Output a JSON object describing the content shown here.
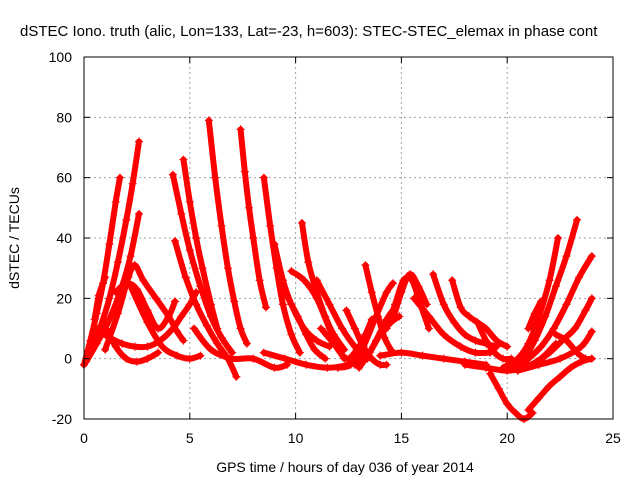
{
  "chart_data": {
    "type": "scatter",
    "title": "dSTEC Iono. truth (alic, Lon=133, Lat=-23, h=603): STEC-STEC_elemax in phase cont",
    "xlabel": "GPS time / hours of day 036 of year 2014",
    "ylabel": "dSTEC  / TECUs",
    "xlim": [
      0,
      25
    ],
    "ylim": [
      -20,
      100
    ],
    "x_ticks": [
      "0",
      "5",
      "10",
      "15",
      "20",
      "25"
    ],
    "y_ticks": [
      "-20",
      "0",
      "20",
      "40",
      "60",
      "80",
      "100"
    ],
    "grid": true,
    "marker": "+",
    "color": "#ff0000",
    "series": [
      {
        "x": [
          0.0,
          0.3,
          0.6,
          0.9,
          1.2,
          1.5,
          1.7
        ],
        "y": [
          -2,
          6,
          15,
          25,
          38,
          52,
          60
        ]
      },
      {
        "x": [
          0.0,
          0.4,
          0.8,
          1.2,
          1.6,
          2.0,
          2.3,
          2.6
        ],
        "y": [
          -2,
          4,
          11,
          20,
          32,
          46,
          58,
          72
        ]
      },
      {
        "x": [
          0.5,
          0.7,
          0.9,
          1.0
        ],
        "y": [
          13,
          21,
          25,
          27
        ]
      },
      {
        "x": [
          0.1,
          0.6,
          1.2,
          1.8,
          2.2,
          2.6
        ],
        "y": [
          -1,
          5,
          13,
          24,
          34,
          48
        ]
      },
      {
        "x": [
          0.9,
          1.5,
          2.0,
          2.5,
          3.0,
          3.5
        ],
        "y": [
          12,
          4,
          0,
          -1,
          0,
          2
        ]
      },
      {
        "x": [
          1.0,
          1.6,
          2.1,
          2.4,
          2.8,
          3.4,
          4.0,
          4.4,
          4.7
        ],
        "y": [
          3,
          15,
          27,
          31,
          26,
          20,
          14,
          9,
          6
        ]
      },
      {
        "x": [
          0.5,
          1.2,
          1.8,
          2.4,
          3.0,
          3.6,
          4.2,
          4.6,
          5.0,
          5.3
        ],
        "y": [
          10,
          7,
          5,
          4,
          4,
          6,
          10,
          14,
          18,
          22
        ]
      },
      {
        "x": [
          1.5,
          2.0,
          2.5,
          3.0,
          3.5,
          4.0,
          4.3
        ],
        "y": [
          22,
          25,
          23,
          16,
          10,
          14,
          19
        ]
      },
      {
        "x": [
          2.2,
          3.0,
          3.7,
          4.4,
          5.0,
          5.5
        ],
        "y": [
          24,
          12,
          4,
          1,
          0,
          1
        ]
      },
      {
        "x": [
          4.2,
          4.6,
          5.0,
          5.5,
          6.0,
          6.5,
          7.0
        ],
        "y": [
          61,
          48,
          36,
          24,
          14,
          7,
          2
        ]
      },
      {
        "x": [
          4.7,
          5.0,
          5.3,
          5.6,
          6.0,
          6.3
        ],
        "y": [
          66,
          52,
          40,
          30,
          18,
          10
        ]
      },
      {
        "x": [
          4.3,
          4.8,
          5.3,
          5.8,
          6.3,
          6.8,
          7.2
        ],
        "y": [
          39,
          27,
          18,
          11,
          5,
          0,
          -6
        ]
      },
      {
        "x": [
          5.9,
          6.2,
          6.5,
          6.8,
          7.1,
          7.4,
          7.7
        ],
        "y": [
          79,
          60,
          44,
          30,
          19,
          10,
          5
        ]
      },
      {
        "x": [
          7.4,
          7.6,
          7.8,
          8.0,
          8.3,
          8.6
        ],
        "y": [
          76,
          62,
          50,
          40,
          26,
          17
        ]
      },
      {
        "x": [
          5.2,
          6.0,
          7.0,
          8.0,
          9.0,
          9.6
        ],
        "y": [
          10,
          3,
          0,
          0,
          -3,
          -2
        ]
      },
      {
        "x": [
          8.5,
          8.8,
          9.1,
          9.4,
          9.8,
          10.2
        ],
        "y": [
          60,
          44,
          30,
          18,
          8,
          2
        ]
      },
      {
        "x": [
          9.0,
          9.4,
          9.8,
          10.4,
          11.0,
          11.6
        ],
        "y": [
          38,
          26,
          18,
          10,
          6,
          4
        ]
      },
      {
        "x": [
          9.5,
          9.8,
          10.1,
          10.5,
          10.9,
          11.4
        ],
        "y": [
          22,
          18,
          14,
          8,
          3,
          0
        ]
      },
      {
        "x": [
          10.3,
          10.6,
          11.0,
          11.4,
          11.8,
          12.3
        ],
        "y": [
          45,
          32,
          22,
          14,
          8,
          3
        ]
      },
      {
        "x": [
          9.8,
          10.4,
          11.0,
          11.6,
          12.0,
          12.3
        ],
        "y": [
          29,
          26,
          20,
          10,
          4,
          0
        ]
      },
      {
        "x": [
          8.5,
          9.5,
          10.5,
          11.5,
          12.5,
          13.0
        ],
        "y": [
          2,
          0,
          -2,
          -3,
          -2,
          0
        ]
      },
      {
        "x": [
          11.0,
          11.6,
          12.2,
          12.8,
          13.4
        ],
        "y": [
          26,
          18,
          10,
          4,
          0
        ]
      },
      {
        "x": [
          11.2,
          11.8,
          12.4,
          12.9,
          13.3,
          13.6
        ],
        "y": [
          10,
          5,
          0,
          3,
          8,
          13
        ]
      },
      {
        "x": [
          12.4,
          12.8,
          13.2,
          13.6,
          14.0,
          14.3
        ],
        "y": [
          16,
          10,
          4,
          0,
          -2,
          -2
        ]
      },
      {
        "x": [
          13.3,
          13.6,
          13.9,
          14.2,
          14.5
        ],
        "y": [
          31,
          22,
          14,
          7,
          3
        ]
      },
      {
        "x": [
          12.0,
          12.6,
          13.2,
          13.8,
          14.3,
          14.6
        ],
        "y": [
          -3,
          -2,
          4,
          14,
          22,
          25
        ]
      },
      {
        "x": [
          12.8,
          13.3,
          13.8,
          14.3,
          14.7
        ],
        "y": [
          -2,
          0,
          6,
          13,
          17
        ]
      },
      {
        "x": [
          13.0,
          13.5,
          14.0,
          14.5,
          14.9
        ],
        "y": [
          -3,
          2,
          8,
          12,
          14
        ]
      },
      {
        "x": [
          14.3,
          14.7,
          15.1,
          15.5,
          15.9,
          16.3
        ],
        "y": [
          10,
          18,
          26,
          26,
          18,
          10
        ]
      },
      {
        "x": [
          14.6,
          15.0,
          15.4,
          15.8,
          16.2
        ],
        "y": [
          13,
          22,
          28,
          24,
          18
        ]
      },
      {
        "x": [
          14.0,
          15.0,
          16.0,
          17.0,
          18.0,
          19.0
        ],
        "y": [
          1,
          2,
          1,
          0,
          -1,
          -2
        ]
      },
      {
        "x": [
          16.5,
          17.0,
          17.5,
          18.0,
          18.5,
          19.0,
          19.5
        ],
        "y": [
          28,
          18,
          12,
          8,
          6,
          5,
          4
        ]
      },
      {
        "x": [
          17.4,
          17.8,
          18.2,
          18.6,
          19.0,
          19.5,
          20.0
        ],
        "y": [
          26,
          17,
          14,
          12,
          10,
          6,
          4
        ]
      },
      {
        "x": [
          15.6,
          16.3,
          17.0,
          17.8,
          18.5,
          19.2
        ],
        "y": [
          20,
          14,
          8,
          4,
          2,
          2
        ]
      },
      {
        "x": [
          18.6,
          19.0,
          19.4,
          19.8,
          20.2
        ],
        "y": [
          12,
          6,
          2,
          0,
          0
        ]
      },
      {
        "x": [
          19.2,
          19.6,
          20.0,
          20.4,
          20.8,
          21.2
        ],
        "y": [
          -5,
          -10,
          -15,
          -18,
          -20,
          -18
        ]
      },
      {
        "x": [
          21.0,
          21.5,
          22.0,
          22.5,
          23.0,
          23.5,
          24.0
        ],
        "y": [
          -17,
          -13,
          -9,
          -6,
          -3,
          -1,
          0
        ]
      },
      {
        "x": [
          18.0,
          19.0,
          20.0,
          20.8,
          21.6,
          22.3
        ],
        "y": [
          -2,
          -3,
          -4,
          -3,
          0,
          5
        ]
      },
      {
        "x": [
          19.8,
          20.4,
          21.0,
          21.6,
          22.2,
          22.8,
          23.4,
          24.0
        ],
        "y": [
          -3,
          -3,
          0,
          4,
          10,
          18,
          27,
          34
        ]
      },
      {
        "x": [
          20.3,
          20.8,
          21.3,
          21.8,
          22.3,
          22.8,
          23.3
        ],
        "y": [
          -3,
          0,
          6,
          14,
          24,
          34,
          46
        ]
      },
      {
        "x": [
          20.0,
          20.5,
          21.0,
          21.5,
          22.0,
          22.4
        ],
        "y": [
          -2,
          0,
          5,
          14,
          26,
          40
        ]
      },
      {
        "x": [
          20.8,
          21.4,
          22.0,
          22.6,
          23.2,
          23.7,
          24.0
        ],
        "y": [
          -3,
          -1,
          2,
          6,
          10,
          16,
          20
        ]
      },
      {
        "x": [
          21.0,
          21.3,
          21.6
        ],
        "y": [
          10,
          15,
          19
        ]
      },
      {
        "x": [
          22.3,
          22.8,
          23.3,
          23.7,
          24.0
        ],
        "y": [
          8,
          6,
          2,
          0,
          0
        ]
      },
      {
        "x": [
          20.5,
          21.5,
          22.5,
          23.5,
          24.0
        ],
        "y": [
          -4,
          -2,
          0,
          4,
          9
        ]
      }
    ]
  }
}
